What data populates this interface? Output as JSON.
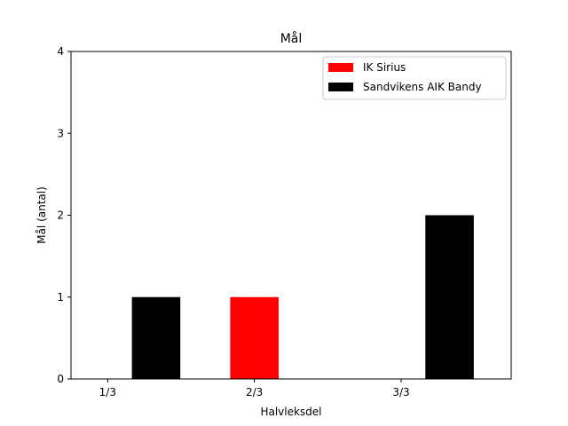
{
  "chart_data": {
    "type": "bar",
    "title": "Mål",
    "xlabel": "Halvleksdel",
    "ylabel": "Mål (antal)",
    "categories": [
      "1/3",
      "2/3",
      "3/3"
    ],
    "series": [
      {
        "name": "IK Sirius",
        "color": "#ff0000",
        "values": [
          0,
          1,
          0
        ]
      },
      {
        "name": "Sandvikens AIK Bandy",
        "color": "#000000",
        "values": [
          1,
          0,
          2
        ]
      }
    ],
    "ylim": [
      0,
      4
    ],
    "yticks": [
      0,
      1,
      2,
      3,
      4
    ],
    "grid": false,
    "legend_position": "top-right"
  }
}
